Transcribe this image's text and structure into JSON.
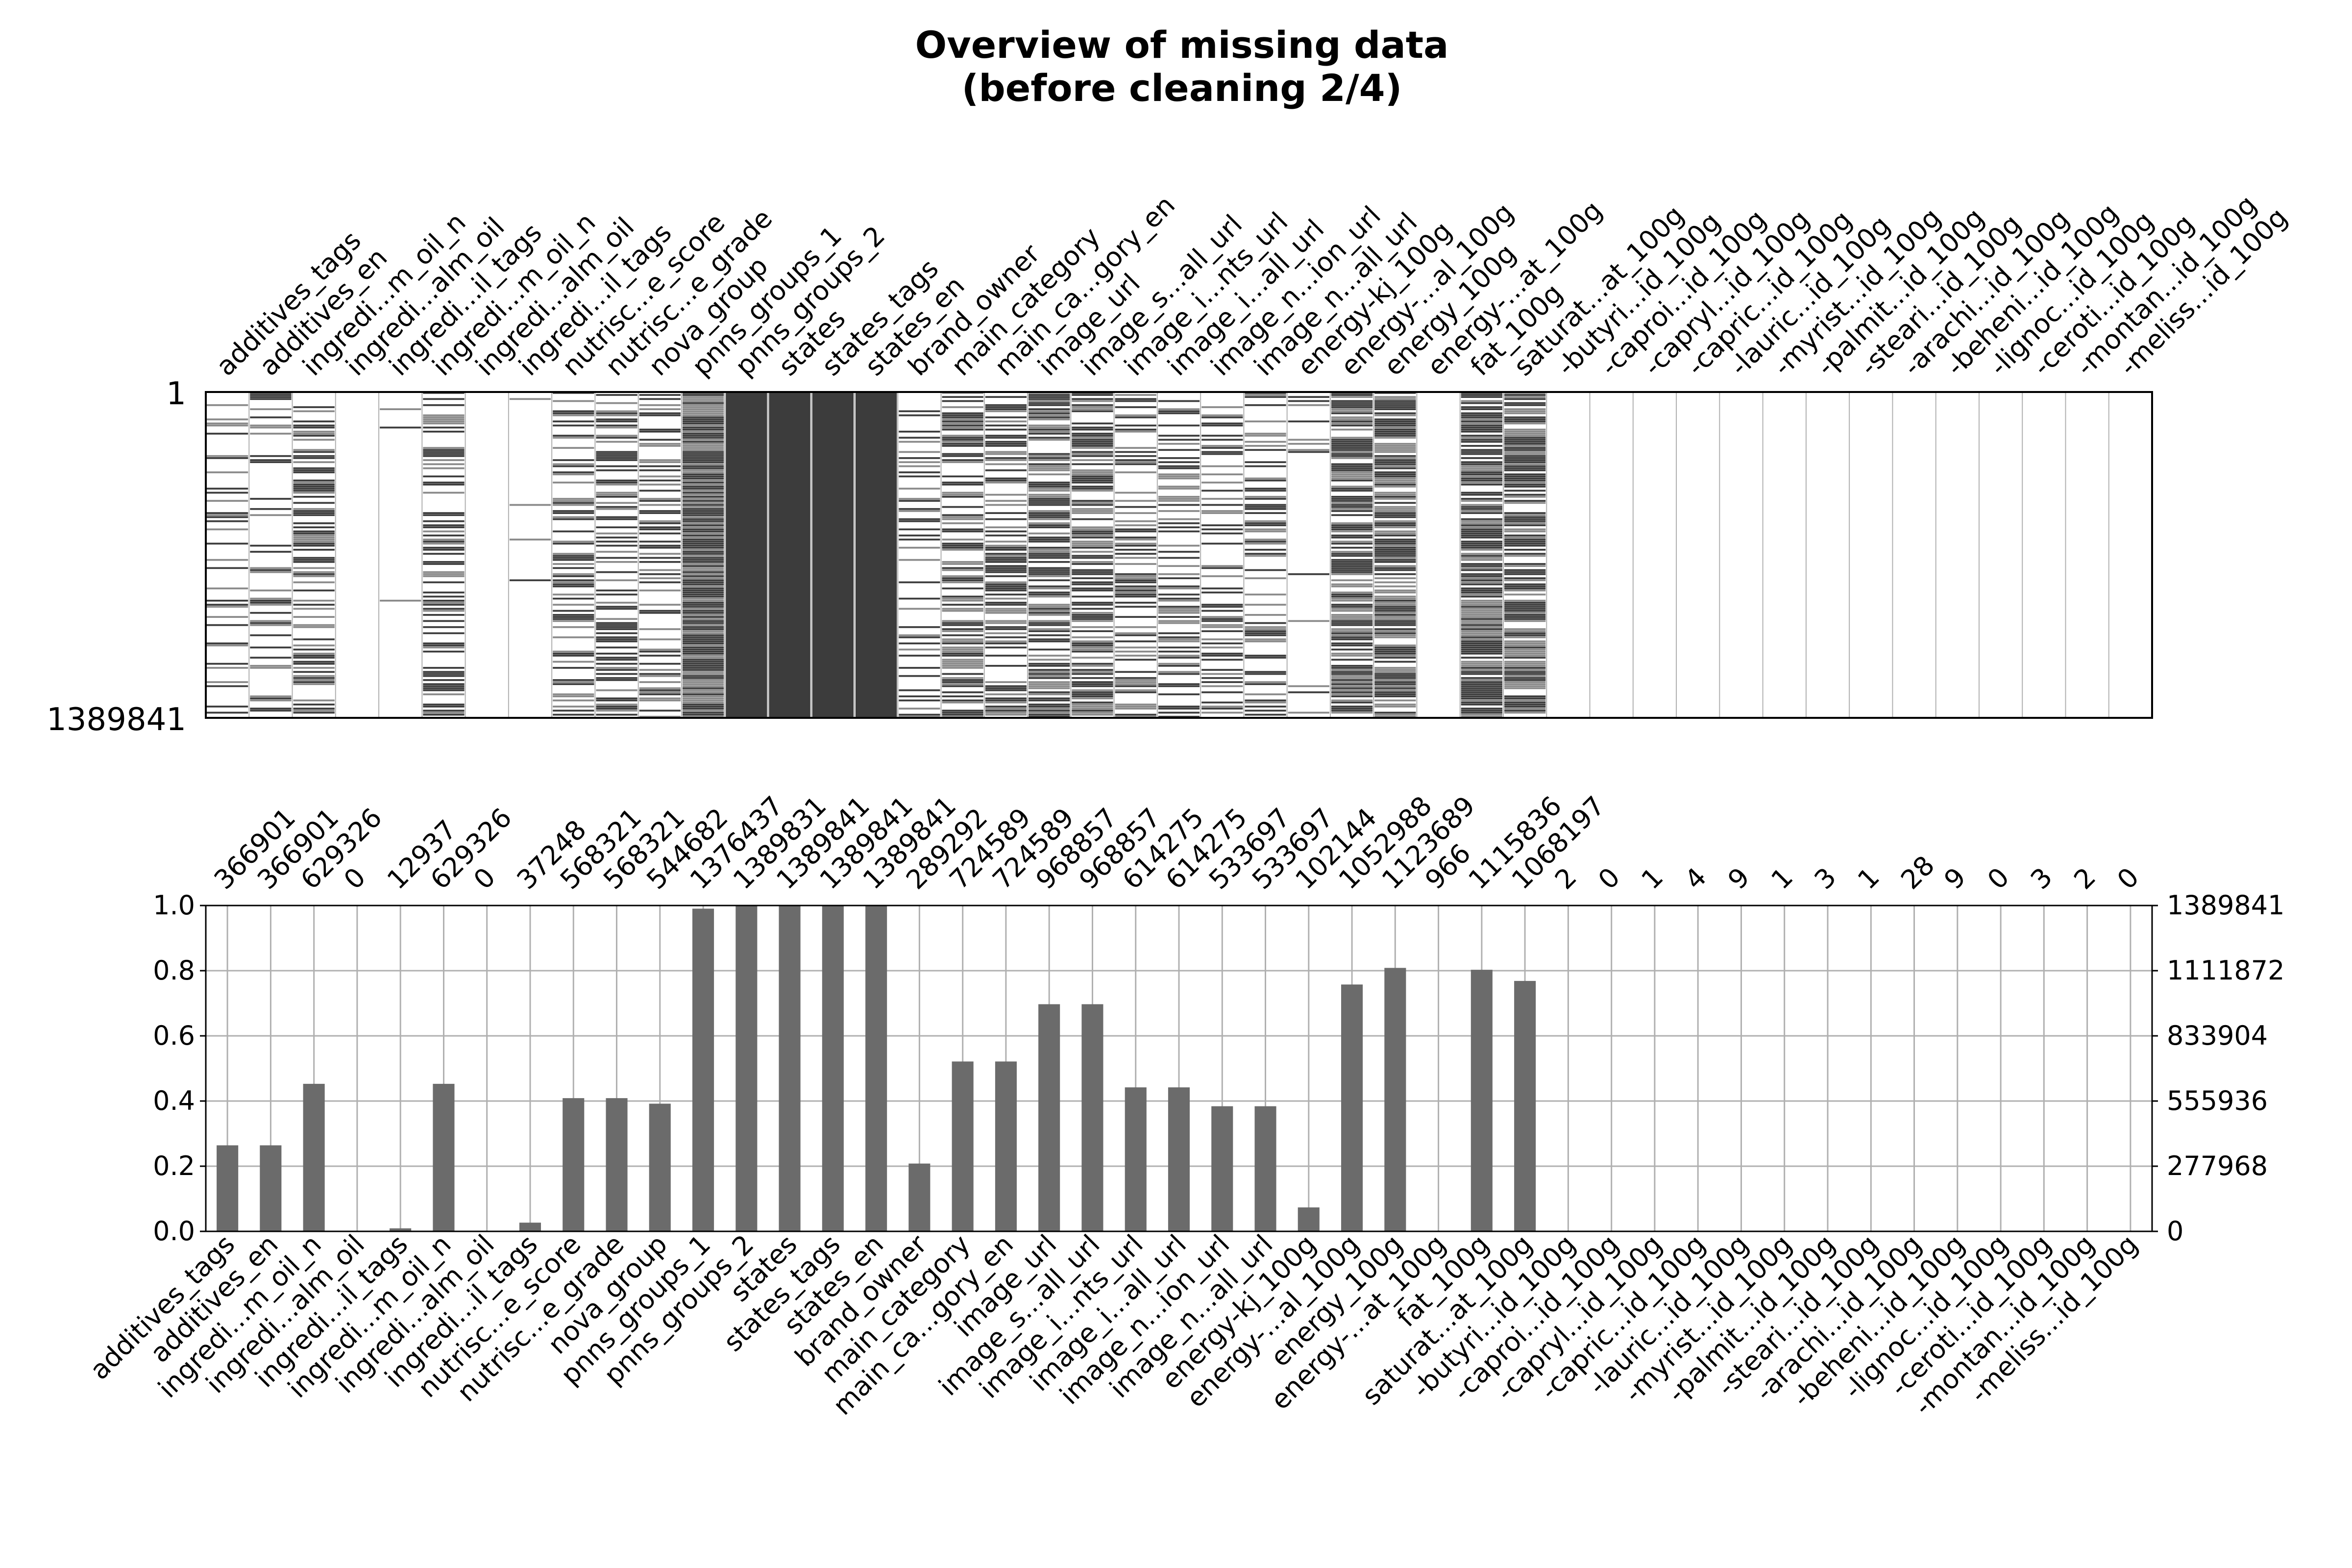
{
  "title_lines": [
    "Overview of missing data",
    "(before cleaning 2/4)"
  ],
  "chart_data": [
    {
      "type": "heatmap",
      "description": "matrix",
      "row_labels": [
        "1",
        "1389841"
      ],
      "columns": [
        "additives_tags",
        "additives_en",
        "ingredi...m_oil_n",
        "ingredi...alm_oil",
        "ingredi...il_tags",
        "ingredi...m_oil_n",
        "ingredi...alm_oil",
        "ingredi...il_tags",
        "nutrisc...e_score",
        "nutrisc...e_grade",
        "nova_group",
        "pnns_groups_1",
        "pnns_groups_2",
        "states",
        "states_tags",
        "states_en",
        "brand_owner",
        "main_category",
        "main_ca...gory_en",
        "image_url",
        "image_s...all_url",
        "image_i...nts_url",
        "image_i...all_url",
        "image_n...ion_url",
        "image_n...all_url",
        "energy-kj_100g",
        "energy-...al_100g",
        "energy_100g",
        "energy-...at_100g",
        "fat_100g",
        "saturat...at_100g",
        "-butyri...id_100g",
        "-caproi...id_100g",
        "-capryl...id_100g",
        "-capric...id_100g",
        "-lauric...id_100g",
        "-myrist...id_100g",
        "-palmit...id_100g",
        "-steari...id_100g",
        "-arachi...id_100g",
        "-beheni...id_100g",
        "-lignoc...id_100g",
        "-ceroti...id_100g",
        "-montan...id_100g",
        "-meliss...id_100g"
      ],
      "fill_color": "#3c3c3c"
    },
    {
      "type": "bar",
      "categories": [
        "additives_tags",
        "additives_en",
        "ingredi...m_oil_n",
        "ingredi...alm_oil",
        "ingredi...il_tags",
        "ingredi...m_oil_n",
        "ingredi...alm_oil",
        "ingredi...il_tags",
        "nutrisc...e_score",
        "nutrisc...e_grade",
        "nova_group",
        "pnns_groups_1",
        "pnns_groups_2",
        "states",
        "states_tags",
        "states_en",
        "brand_owner",
        "main_category",
        "main_ca...gory_en",
        "image_url",
        "image_s...all_url",
        "image_i...nts_url",
        "image_i...all_url",
        "image_n...ion_url",
        "image_n...all_url",
        "energy-kj_100g",
        "energy-...al_100g",
        "energy_100g",
        "energy-...at_100g",
        "fat_100g",
        "saturat...at_100g",
        "-butyri...id_100g",
        "-caproi...id_100g",
        "-capryl...id_100g",
        "-capric...id_100g",
        "-lauric...id_100g",
        "-myrist...id_100g",
        "-palmit...id_100g",
        "-steari...id_100g",
        "-arachi...id_100g",
        "-beheni...id_100g",
        "-lignoc...id_100g",
        "-ceroti...id_100g",
        "-montan...id_100g",
        "-meliss...id_100g"
      ],
      "values": [
        366901,
        366901,
        629326,
        0,
        12937,
        629326,
        0,
        37248,
        568321,
        568321,
        544682,
        1376437,
        1389831,
        1389841,
        1389841,
        1389841,
        289292,
        724589,
        724589,
        968857,
        968857,
        614275,
        614275,
        533697,
        533697,
        102144,
        1052988,
        1123689,
        966,
        1115836,
        1068197,
        2,
        0,
        1,
        4,
        9,
        1,
        3,
        1,
        28,
        9,
        0,
        3,
        2,
        0
      ],
      "total": 1389841,
      "ylim": [
        0,
        1
      ],
      "yticks_left": [
        "0.0",
        "0.2",
        "0.4",
        "0.6",
        "0.8",
        "1.0"
      ],
      "yticks_right": [
        "0",
        "277968",
        "555936",
        "833904",
        "1111872",
        "1389841"
      ],
      "grid": true,
      "bar_color": "#6b6b6b"
    }
  ]
}
